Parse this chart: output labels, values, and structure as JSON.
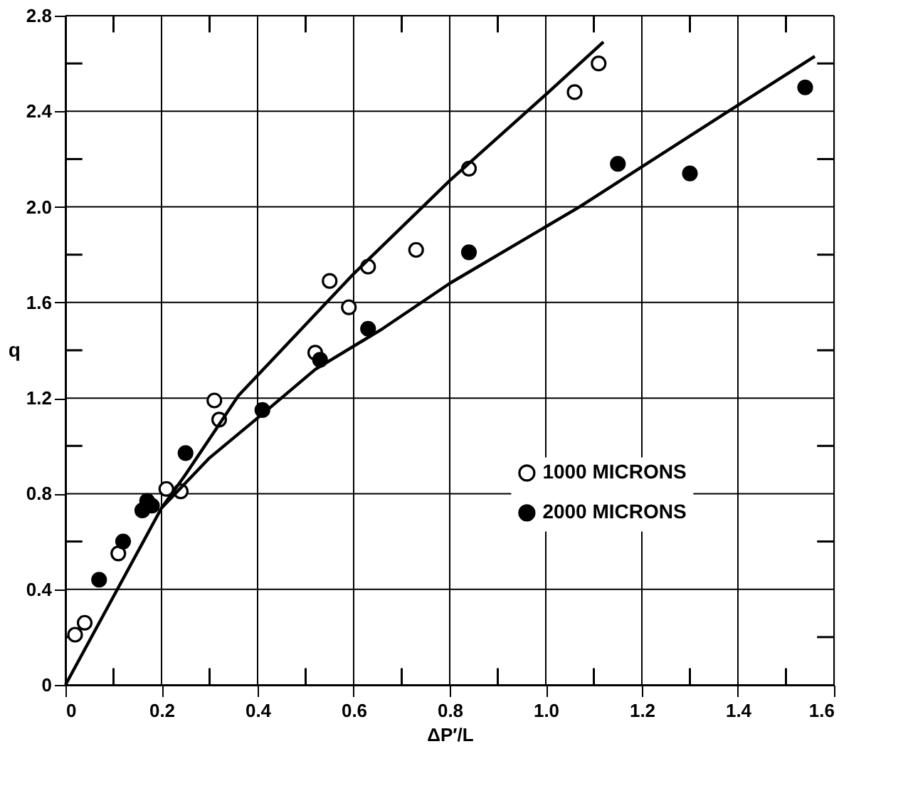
{
  "chart_data": {
    "type": "scatter",
    "xlabel": "ΔP′/L",
    "ylabel": "q",
    "xlim": [
      0,
      1.6
    ],
    "ylim": [
      0,
      2.8
    ],
    "xticks": [
      0,
      {
        "value": 0.1,
        "label": null
      },
      {
        "value": 0.2,
        "label": "0.2"
      },
      {
        "value": 0.3,
        "label": null
      },
      {
        "value": 0.4,
        "label": "0.4"
      },
      {
        "value": 0.5,
        "label": null
      },
      {
        "value": 0.6,
        "label": "0.6"
      },
      {
        "value": 0.7,
        "label": null
      },
      {
        "value": 0.8,
        "label": "0.8"
      },
      {
        "value": 0.9,
        "label": null
      },
      {
        "value": 1.0,
        "label": "1.0"
      },
      {
        "value": 1.1,
        "label": null
      },
      {
        "value": 1.2,
        "label": "1.2"
      },
      {
        "value": 1.3,
        "label": null
      },
      {
        "value": 1.4,
        "label": "1.4"
      },
      {
        "value": 1.5,
        "label": null
      },
      {
        "value": 1.6,
        "label": "1.6"
      }
    ],
    "yticks": [
      0,
      {
        "value": 0.2,
        "label": null
      },
      {
        "value": 0.4,
        "label": "0.4"
      },
      {
        "value": 0.6,
        "label": null
      },
      {
        "value": 0.8,
        "label": "0.8"
      },
      {
        "value": 1.0,
        "label": null
      },
      {
        "value": 1.2,
        "label": "1.2"
      },
      {
        "value": 1.4,
        "label": null
      },
      {
        "value": 1.6,
        "label": "1.6"
      },
      {
        "value": 1.8,
        "label": null
      },
      {
        "value": 2.0,
        "label": "2.0"
      },
      {
        "value": 2.2,
        "label": null
      },
      {
        "value": 2.4,
        "label": "2.4"
      },
      {
        "value": 2.6,
        "label": null
      },
      {
        "value": 2.8,
        "label": "2.8"
      }
    ],
    "grid": true,
    "legend": "right",
    "series": [
      {
        "name": "1000 MICRONS",
        "color": "#ffffff",
        "marker": "circle",
        "x": [
          0.02,
          0.04,
          0.11,
          0.21,
          0.24,
          0.31,
          0.32,
          0.52,
          0.55,
          0.59,
          0.63,
          0.73,
          0.84,
          1.06,
          1.11
        ],
        "values": [
          0.21,
          0.26,
          0.55,
          0.82,
          0.81,
          1.19,
          1.11,
          1.39,
          1.69,
          1.58,
          1.75,
          1.82,
          2.16,
          2.48,
          2.6
        ]
      },
      {
        "name": "2000 MICRONS",
        "color": "#000000",
        "marker": "circle",
        "x": [
          0.07,
          0.12,
          0.16,
          0.17,
          0.18,
          0.25,
          0.41,
          0.53,
          0.63,
          0.84,
          1.15,
          1.3,
          1.54
        ],
        "values": [
          0.44,
          0.6,
          0.73,
          0.77,
          0.75,
          0.97,
          1.15,
          1.36,
          1.49,
          1.81,
          2.18,
          2.14,
          2.5
        ]
      },
      {
        "type": "line",
        "color": "#000000",
        "line_style": "solid",
        "x": [
          0,
          0.1,
          0.2,
          0.25,
          0.3,
          0.36,
          0.6,
          0.8,
          1.0,
          1.12
        ],
        "values": [
          0,
          0.37,
          0.74,
          0.88,
          1.03,
          1.21,
          1.72,
          2.11,
          2.47,
          2.69
        ]
      },
      {
        "type": "line",
        "color": "#000000",
        "line_style": "solid",
        "x": [
          0.2,
          0.3,
          0.42,
          0.52,
          0.66,
          0.8,
          1.07,
          1.38,
          1.56
        ],
        "values": [
          0.74,
          0.95,
          1.15,
          1.32,
          1.49,
          1.68,
          2.0,
          2.4,
          2.63
        ]
      }
    ]
  }
}
